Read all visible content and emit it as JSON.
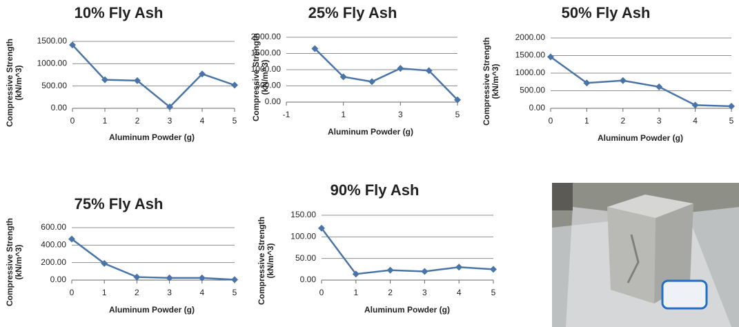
{
  "chart_data": [
    {
      "type": "line",
      "title": "10% Fly Ash",
      "x_label": "Aluminum Powder (g)",
      "y_label": [
        "Compressive Strength",
        "(kN/m^3)"
      ],
      "x": [
        0,
        1,
        2,
        3,
        4,
        5
      ],
      "xlim": [
        0,
        5
      ],
      "xticks": [
        0,
        1,
        2,
        3,
        4,
        5
      ],
      "ylim": [
        0,
        1500
      ],
      "yticks": [
        {
          "value": 0,
          "label": "0.00"
        },
        {
          "value": 500,
          "label": "500.00"
        },
        {
          "value": 1000,
          "label": "1000.00"
        },
        {
          "value": 1500,
          "label": "1500.00"
        }
      ],
      "grid": true,
      "series": [
        {
          "color": "#4a74a8",
          "values": [
            1420,
            640,
            620,
            30,
            770,
            520
          ]
        }
      ]
    },
    {
      "type": "line",
      "title": "25% Fly Ash",
      "x_label": "Aluminum Powder (g)",
      "y_label": [
        "Compressive Strength",
        "(kN/m^3)"
      ],
      "x": [
        0,
        1,
        2,
        3,
        4,
        5
      ],
      "xlim": [
        -1,
        5
      ],
      "xticks": [
        -1,
        1,
        3,
        5
      ],
      "ylim": [
        0,
        2000
      ],
      "yticks": [
        {
          "value": 0,
          "label": "0.00"
        },
        {
          "value": 500,
          "label": "500.00"
        },
        {
          "value": 1000,
          "label": "1000.00"
        },
        {
          "value": 1500,
          "label": "1500.00"
        },
        {
          "value": 2000,
          "label": "2000.00"
        }
      ],
      "grid": true,
      "series": [
        {
          "color": "#4a74a8",
          "values": [
            1650,
            780,
            630,
            1040,
            970,
            70
          ]
        }
      ]
    },
    {
      "type": "line",
      "title": "50% Fly Ash",
      "x_label": "Aluminum Powder (g)",
      "y_label": [
        "Compressive Strength",
        "(kN/m^3)"
      ],
      "x": [
        0,
        1,
        2,
        3,
        4,
        5
      ],
      "xlim": [
        0,
        5
      ],
      "xticks": [
        0,
        1,
        2,
        3,
        4,
        5
      ],
      "ylim": [
        0,
        2000
      ],
      "yticks": [
        {
          "value": 0,
          "label": "0.00"
        },
        {
          "value": 500,
          "label": "500.00"
        },
        {
          "value": 1000,
          "label": "1000.00"
        },
        {
          "value": 1500,
          "label": "1500.00"
        },
        {
          "value": 2000,
          "label": "2000.00"
        }
      ],
      "grid": true,
      "series": [
        {
          "color": "#4a74a8",
          "values": [
            1460,
            720,
            790,
            610,
            90,
            60
          ]
        }
      ]
    },
    {
      "type": "line",
      "title": "75% Fly Ash",
      "x_label": "Aluminum Powder (g)",
      "y_label": [
        "Compressive Strength",
        "(kN/m^3)"
      ],
      "x": [
        0,
        1,
        2,
        3,
        4,
        5
      ],
      "xlim": [
        0,
        5
      ],
      "xticks": [
        0,
        1,
        2,
        3,
        4,
        5
      ],
      "ylim": [
        0,
        600
      ],
      "yticks": [
        {
          "value": 0,
          "label": "0.00"
        },
        {
          "value": 200,
          "label": "200.00"
        },
        {
          "value": 400,
          "label": "400.00"
        },
        {
          "value": 600,
          "label": "600.00"
        }
      ],
      "grid": true,
      "series": [
        {
          "color": "#4a74a8",
          "values": [
            470,
            190,
            35,
            25,
            25,
            5
          ]
        }
      ]
    },
    {
      "type": "line",
      "title": "90% Fly Ash",
      "x_label": "Aluminum Powder (g)",
      "y_label": [
        "Compressive Strength",
        "(kN/m^3)"
      ],
      "x": [
        0,
        1,
        2,
        3,
        4,
        5
      ],
      "xlim": [
        0,
        5
      ],
      "xticks": [
        0,
        1,
        2,
        3,
        4,
        5
      ],
      "ylim": [
        0,
        150
      ],
      "yticks": [
        {
          "value": 0,
          "label": "0.00"
        },
        {
          "value": 50,
          "label": "50.00"
        },
        {
          "value": 100,
          "label": "100.00"
        },
        {
          "value": 150,
          "label": "150.00"
        }
      ],
      "grid": true,
      "series": [
        {
          "color": "#4a74a8",
          "values": [
            120,
            14,
            23,
            20,
            30,
            25
          ]
        }
      ]
    }
  ]
}
